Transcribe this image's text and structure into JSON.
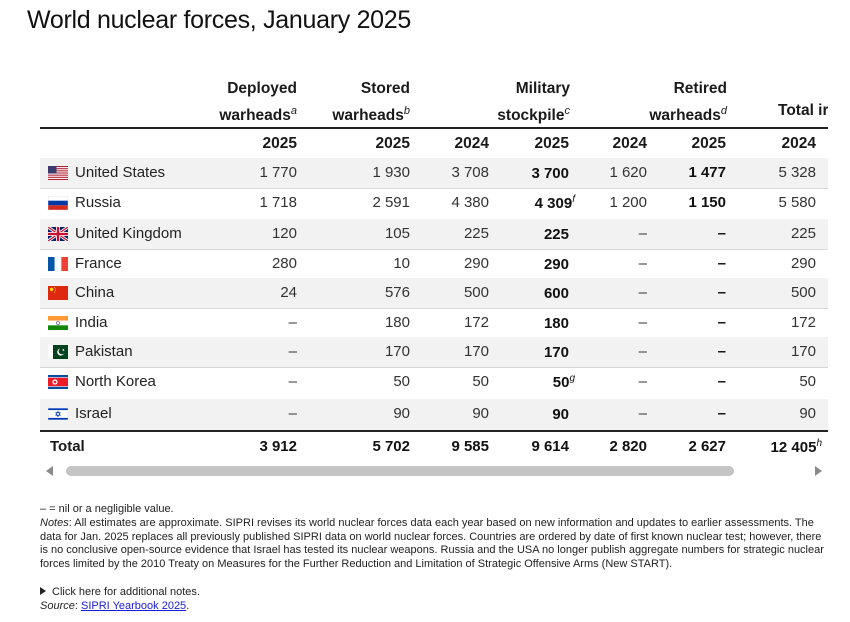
{
  "title": "World nuclear forces, January 2025",
  "headers": {
    "deployed_line1": "Deployed",
    "deployed_line2": "warheads",
    "deployed_note": "a",
    "stored_line1": "Stored",
    "stored_line2": "warheads",
    "stored_note": "b",
    "military_line1": "Military",
    "military_line2": "stockpile",
    "military_note": "c",
    "retired_line1": "Retired",
    "retired_line2": "warheads",
    "retired_note": "d",
    "total_line1": "Total ir"
  },
  "years": [
    "2025",
    "2025",
    "2024",
    "2025",
    "2024",
    "2025",
    "2024"
  ],
  "rows": [
    {
      "country": "United States",
      "flag": "us-flag-icon",
      "deployed": "1 770",
      "stored": "1 930",
      "mil2024": "3 708",
      "mil2025": "3 700",
      "mil2025_note": "",
      "ret2024": "1 620",
      "ret2025": "1 477",
      "tot2024": "5 328"
    },
    {
      "country": "Russia",
      "flag": "russia-flag-icon",
      "deployed": "1 718",
      "stored": "2 591",
      "mil2024": "4 380",
      "mil2025": "4 309",
      "mil2025_note": "f",
      "ret2024": "1 200",
      "ret2025": "1 150",
      "tot2024": "5 580"
    },
    {
      "country": "United Kingdom",
      "flag": "uk-flag-icon",
      "deployed": "120",
      "stored": "105",
      "mil2024": "225",
      "mil2025": "225",
      "mil2025_note": "",
      "ret2024": "–",
      "ret2025": "–",
      "tot2024": "225"
    },
    {
      "country": "France",
      "flag": "france-flag-icon",
      "deployed": "280",
      "stored": "10",
      "mil2024": "290",
      "mil2025": "290",
      "mil2025_note": "",
      "ret2024": "–",
      "ret2025": "–",
      "tot2024": "290"
    },
    {
      "country": "China",
      "flag": "china-flag-icon",
      "deployed": "24",
      "stored": "576",
      "mil2024": "500",
      "mil2025": "600",
      "mil2025_note": "",
      "ret2024": "–",
      "ret2025": "–",
      "tot2024": "500"
    },
    {
      "country": "India",
      "flag": "india-flag-icon",
      "deployed": "–",
      "stored": "180",
      "mil2024": "172",
      "mil2025": "180",
      "mil2025_note": "",
      "ret2024": "–",
      "ret2025": "–",
      "tot2024": "172"
    },
    {
      "country": "Pakistan",
      "flag": "pakistan-flag-icon",
      "deployed": "–",
      "stored": "170",
      "mil2024": "170",
      "mil2025": "170",
      "mil2025_note": "",
      "ret2024": "–",
      "ret2025": "–",
      "tot2024": "170"
    },
    {
      "country": "North Korea",
      "flag": "north-korea-flag-icon",
      "deployed": "–",
      "stored": "50",
      "mil2024": "50",
      "mil2025": "50",
      "mil2025_note": "g",
      "ret2024": "–",
      "ret2025": "–",
      "tot2024": "50"
    },
    {
      "country": "Israel",
      "flag": "israel-flag-icon",
      "deployed": "–",
      "stored": "90",
      "mil2024": "90",
      "mil2025": "90",
      "mil2025_note": "",
      "ret2024": "–",
      "ret2025": "–",
      "tot2024": "90"
    }
  ],
  "total": {
    "label": "Total",
    "deployed": "3 912",
    "stored": "5 702",
    "mil2024": "9 585",
    "mil2025": "9 614",
    "ret2024": "2 820",
    "ret2025": "2 627",
    "tot2024": "12 405",
    "tot2024_note": "h"
  },
  "notes": {
    "legend": "– = nil or a negligible value.",
    "notes_label": "Notes",
    "notes_text": ": All estimates are approximate. SIPRI revises its world nuclear forces data each year based on new information and updates to earlier assessments. The data for Jan. 2025 replaces all previously published SIPRI data on world nuclear forces. Countries are ordered by date of first known nuclear test; however, there is no conclusive open-source evidence that Israel has tested its nuclear weapons. Russia and the USA no longer publish aggregate numbers for strategic nuclear forces limited by the 2010 Treaty on Measures for the Further Reduction and Limitation of Strategic Offensive Arms (New START).",
    "click_more": "Click here for additional notes.",
    "source_label": "Source",
    "source_sep": ": ",
    "source_link": "SIPRI Yearbook 2025",
    "source_end": "."
  }
}
